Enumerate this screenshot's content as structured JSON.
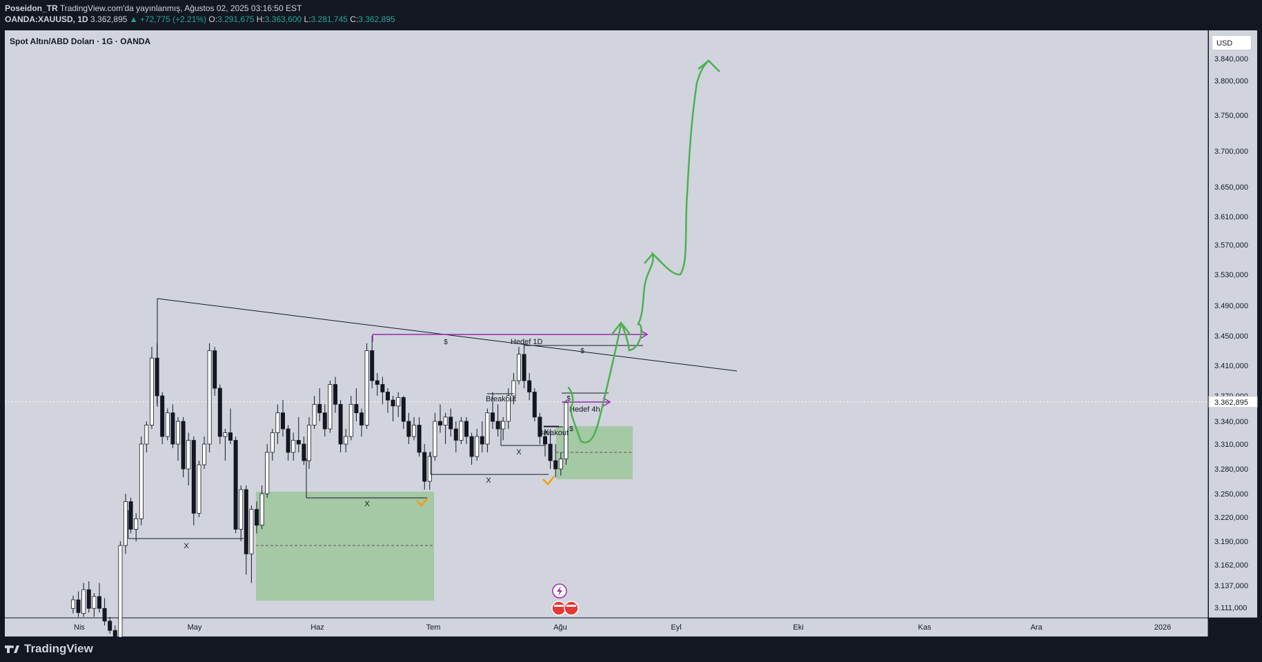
{
  "header": {
    "author": "Poseidon_TR",
    "published": "TradingView.com'da yayınlanmış, Ağustos 02, 2025 03:16:50 EST",
    "symbol": "OANDA:XAUUSD, 1D",
    "last": "3.362,895",
    "change": "▲ +72,775 (+2.21%)",
    "o_label": "O:",
    "o": "3.291,675",
    "h_label": "H:",
    "h": "3.363,600",
    "l_label": "L:",
    "l": "3.281,745",
    "c_label": "C:",
    "c": "3.362,895"
  },
  "chart_title": "Spot Altın/ABD Doları · 1G · OANDA",
  "currency": "USD",
  "footer": {
    "brand": "TradingView"
  },
  "colors": {
    "bg": "#d1d4dc",
    "frame": "#131722",
    "green_zone": "#a5c8a5",
    "arrow_green": "#4caf50",
    "purple": "#9c27b0",
    "orange": "#f59e0b"
  },
  "chart_data": {
    "type": "candlestick",
    "price_axis_labels": [
      "3.840,000",
      "3.800,000",
      "3.750,000",
      "3.700,000",
      "3.650,000",
      "3.610,000",
      "3.570,000",
      "3.530,000",
      "3.490,000",
      "3.450,000",
      "3.410,000",
      "3.370,000",
      "3.340,000",
      "3.310,000",
      "3.280,000",
      "3.250,000",
      "3.220,000",
      "3.190,000",
      "3.162,000",
      "3.137,000",
      "3.111,000"
    ],
    "last_price_label": "3.362,895",
    "time_axis_labels": [
      "Nis",
      "May",
      "Haz",
      "Tem",
      "Ağu",
      "Eyl",
      "Eki",
      "Kas",
      "Ara",
      "2026"
    ],
    "annotations": [
      "X",
      "X",
      "X",
      "X",
      "X",
      "$",
      "$",
      "$",
      "$",
      "Hedef 1D",
      "Hedef 4h",
      "Breakout",
      "Breakout"
    ],
    "candles": [
      [
        3110,
        3125,
        3104,
        3120
      ],
      [
        3120,
        3130,
        3100,
        3105
      ],
      [
        3104,
        3140,
        3100,
        3132
      ],
      [
        3132,
        3142,
        3105,
        3110
      ],
      [
        3110,
        3128,
        3100,
        3124
      ],
      [
        3124,
        3140,
        3105,
        3110
      ],
      [
        3110,
        3122,
        3090,
        3095
      ],
      [
        3095,
        3100,
        3080,
        3084
      ],
      [
        3084,
        3090,
        3070,
        3076
      ],
      [
        3076,
        3190,
        3070,
        3185
      ],
      [
        3185,
        3250,
        3175,
        3240
      ],
      [
        3240,
        3245,
        3200,
        3205
      ],
      [
        3205,
        3225,
        3190,
        3218
      ],
      [
        3218,
        3320,
        3210,
        3310
      ],
      [
        3310,
        3340,
        3300,
        3335
      ],
      [
        3335,
        3435,
        3330,
        3420
      ],
      [
        3420,
        3440,
        3360,
        3370
      ],
      [
        3370,
        3375,
        3310,
        3320
      ],
      [
        3320,
        3355,
        3315,
        3350
      ],
      [
        3350,
        3360,
        3305,
        3310
      ],
      [
        3310,
        3345,
        3290,
        3340
      ],
      [
        3340,
        3345,
        3270,
        3280
      ],
      [
        3280,
        3325,
        3260,
        3315
      ],
      [
        3315,
        3320,
        3210,
        3225
      ],
      [
        3225,
        3290,
        3220,
        3285
      ],
      [
        3285,
        3320,
        3280,
        3310
      ],
      [
        3310,
        3440,
        3300,
        3430
      ],
      [
        3430,
        3435,
        3370,
        3380
      ],
      [
        3380,
        3385,
        3310,
        3320
      ],
      [
        3320,
        3330,
        3290,
        3325
      ],
      [
        3325,
        3355,
        3310,
        3315
      ],
      [
        3315,
        3320,
        3200,
        3205
      ],
      [
        3205,
        3260,
        3190,
        3255
      ],
      [
        3255,
        3260,
        3150,
        3175
      ],
      [
        3175,
        3235,
        3140,
        3230
      ],
      [
        3230,
        3240,
        3200,
        3210
      ],
      [
        3210,
        3260,
        3205,
        3250
      ],
      [
        3250,
        3310,
        3245,
        3300
      ],
      [
        3300,
        3330,
        3290,
        3325
      ],
      [
        3325,
        3360,
        3310,
        3350
      ],
      [
        3350,
        3365,
        3320,
        3330
      ],
      [
        3330,
        3335,
        3290,
        3300
      ],
      [
        3300,
        3325,
        3290,
        3315
      ],
      [
        3315,
        3345,
        3300,
        3310
      ],
      [
        3310,
        3320,
        3285,
        3290
      ],
      [
        3290,
        3345,
        3280,
        3335
      ],
      [
        3335,
        3370,
        3330,
        3360
      ],
      [
        3360,
        3380,
        3340,
        3350
      ],
      [
        3350,
        3360,
        3320,
        3330
      ],
      [
        3330,
        3390,
        3325,
        3385
      ],
      [
        3385,
        3395,
        3350,
        3360
      ],
      [
        3360,
        3365,
        3300,
        3310
      ],
      [
        3310,
        3330,
        3300,
        3320
      ],
      [
        3320,
        3370,
        3315,
        3360
      ],
      [
        3360,
        3380,
        3340,
        3350
      ],
      [
        3350,
        3355,
        3320,
        3335
      ],
      [
        3335,
        3440,
        3330,
        3430
      ],
      [
        3430,
        3450,
        3380,
        3390
      ],
      [
        3390,
        3400,
        3370,
        3385
      ],
      [
        3385,
        3395,
        3360,
        3375
      ],
      [
        3375,
        3380,
        3350,
        3365
      ],
      [
        3365,
        3370,
        3340,
        3358
      ],
      [
        3358,
        3375,
        3345,
        3368
      ],
      [
        3368,
        3370,
        3330,
        3340
      ],
      [
        3340,
        3350,
        3310,
        3320
      ],
      [
        3320,
        3345,
        3315,
        3335
      ],
      [
        3335,
        3345,
        3295,
        3300
      ],
      [
        3300,
        3310,
        3255,
        3265
      ],
      [
        3265,
        3300,
        3255,
        3295
      ],
      [
        3295,
        3350,
        3290,
        3340
      ],
      [
        3340,
        3360,
        3325,
        3335
      ],
      [
        3335,
        3350,
        3310,
        3345
      ],
      [
        3345,
        3355,
        3320,
        3330
      ],
      [
        3330,
        3340,
        3300,
        3315
      ],
      [
        3315,
        3345,
        3310,
        3340
      ],
      [
        3340,
        3345,
        3310,
        3320
      ],
      [
        3320,
        3325,
        3285,
        3295
      ],
      [
        3295,
        3330,
        3290,
        3320
      ],
      [
        3320,
        3340,
        3300,
        3310
      ],
      [
        3310,
        3355,
        3300,
        3350
      ],
      [
        3350,
        3375,
        3330,
        3340
      ],
      [
        3340,
        3360,
        3320,
        3330
      ],
      [
        3330,
        3345,
        3315,
        3340
      ],
      [
        3340,
        3380,
        3330,
        3370
      ],
      [
        3370,
        3400,
        3360,
        3390
      ],
      [
        3390,
        3435,
        3385,
        3425
      ],
      [
        3425,
        3440,
        3380,
        3390
      ],
      [
        3390,
        3400,
        3365,
        3375
      ],
      [
        3375,
        3380,
        3340,
        3345
      ],
      [
        3345,
        3350,
        3310,
        3320
      ],
      [
        3320,
        3330,
        3295,
        3310
      ],
      [
        3310,
        3330,
        3280,
        3290
      ],
      [
        3290,
        3310,
        3270,
        3280
      ],
      [
        3280,
        3300,
        3272,
        3292
      ],
      [
        3292,
        3365,
        3285,
        3362
      ]
    ]
  }
}
